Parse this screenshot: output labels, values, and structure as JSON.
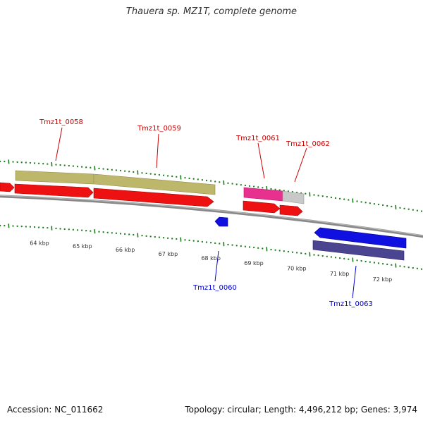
{
  "title": "Thauera sp. MZ1T, complete genome",
  "footer": {
    "accession": "Accession: NC_011662",
    "summary": "Topology: circular; Length: 4,496,212 bp; Genes: 3,974"
  },
  "colors": {
    "ruler_tick": "#1a7a1a",
    "backbone": "#7a7a7a",
    "cds_red": "#ee0000",
    "gene_khaki": "#bdb76b",
    "gene_pink": "#e8308f",
    "gene_grey": "#c0c0c0",
    "gene_blue": "#1010e0",
    "gene_darkslate": "#4b4490",
    "label_red": "#cc0000",
    "label_blue": "#0000cc"
  },
  "scale_labels": [
    "64 kbp",
    "65 kbp",
    "66 kbp",
    "67 kbp",
    "68 kbp",
    "69 kbp",
    "70 kbp",
    "71 kbp",
    "72 kbp"
  ],
  "gene_labels": {
    "tmz1t_0058": "Tmz1t_0058",
    "tmz1t_0059": "Tmz1t_0059",
    "tmz1t_0060": "Tmz1t_0060",
    "tmz1t_0061": "Tmz1t_0061",
    "tmz1t_0062": "Tmz1t_0062",
    "tmz1t_0063": "Tmz1t_0063"
  }
}
